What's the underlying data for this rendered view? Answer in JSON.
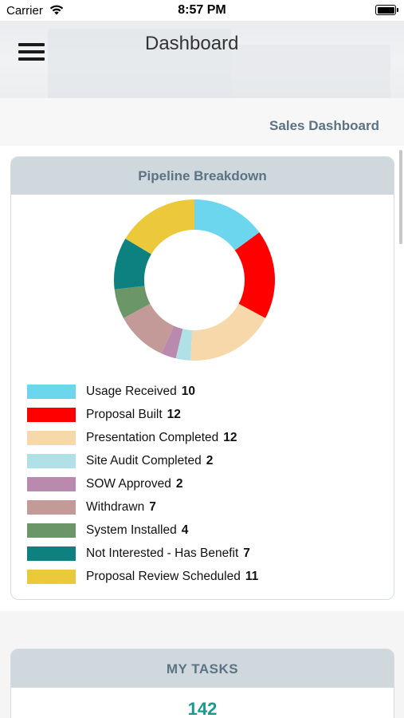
{
  "status_bar": {
    "carrier": "Carrier",
    "time": "8:57 PM"
  },
  "header": {
    "title": "Dashboard",
    "menu_icon": "hamburger-menu-icon"
  },
  "sales_link": "Sales Dashboard",
  "pipeline": {
    "title": "Pipeline Breakdown",
    "items": [
      {
        "label": "Usage Received",
        "value": "10",
        "color": "#6dd6ef"
      },
      {
        "label": "Proposal Built",
        "value": "12",
        "color": "#ff0000"
      },
      {
        "label": "Presentation Completed",
        "value": "12",
        "color": "#f6d8aa"
      },
      {
        "label": "Site Audit Completed",
        "value": "2",
        "color": "#b0e1e6"
      },
      {
        "label": "SOW Approved",
        "value": "2",
        "color": "#b98aae"
      },
      {
        "label": "Withdrawn",
        "value": "7",
        "color": "#c49a98"
      },
      {
        "label": "System Installed",
        "value": "4",
        "color": "#6b9668"
      },
      {
        "label": "Not Interested - Has Benefit",
        "value": "7",
        "color": "#0d8080"
      },
      {
        "label": "Proposal Review Scheduled",
        "value": "11",
        "color": "#ecc93a"
      }
    ]
  },
  "tasks": {
    "title": "MY TASKS",
    "count": "142"
  }
}
